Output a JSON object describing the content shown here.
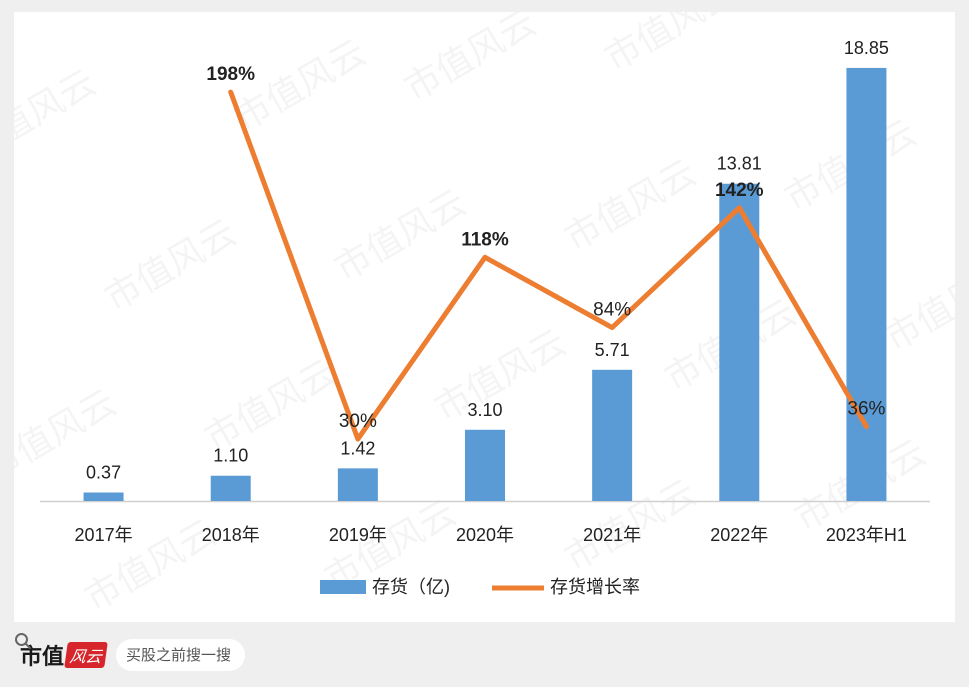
{
  "chart_data": {
    "type": "bar",
    "categories": [
      "2017年",
      "2018年",
      "2019年",
      "2020年",
      "2021年",
      "2022年",
      "2023年H1"
    ],
    "series": [
      {
        "name": "存货（亿)",
        "type": "bar",
        "values": [
          0.37,
          1.1,
          1.42,
          3.1,
          5.71,
          13.81,
          18.85
        ],
        "labels": [
          "0.37",
          "1.10",
          "1.42",
          "3.10",
          "5.71",
          "13.81",
          "18.85"
        ],
        "color": "#5b9bd5"
      },
      {
        "name": "存货增长率",
        "type": "line",
        "values": [
          null,
          198,
          30,
          118,
          84,
          142,
          36
        ],
        "labels": [
          "",
          "198%",
          "30%",
          "118%",
          "84%",
          "142%",
          "36%"
        ],
        "bold": [
          false,
          true,
          false,
          true,
          false,
          true,
          false
        ],
        "color": "#ed7d31"
      }
    ],
    "ylim": [
      0,
      19.5
    ],
    "ylim_secondary": [
      0,
      215
    ],
    "legend_position": "bottom",
    "grid": false
  },
  "watermark": "市值风云",
  "footer": {
    "brand": "市值",
    "brand_seal": "风云",
    "search_placeholder": "买股之前搜一搜"
  }
}
